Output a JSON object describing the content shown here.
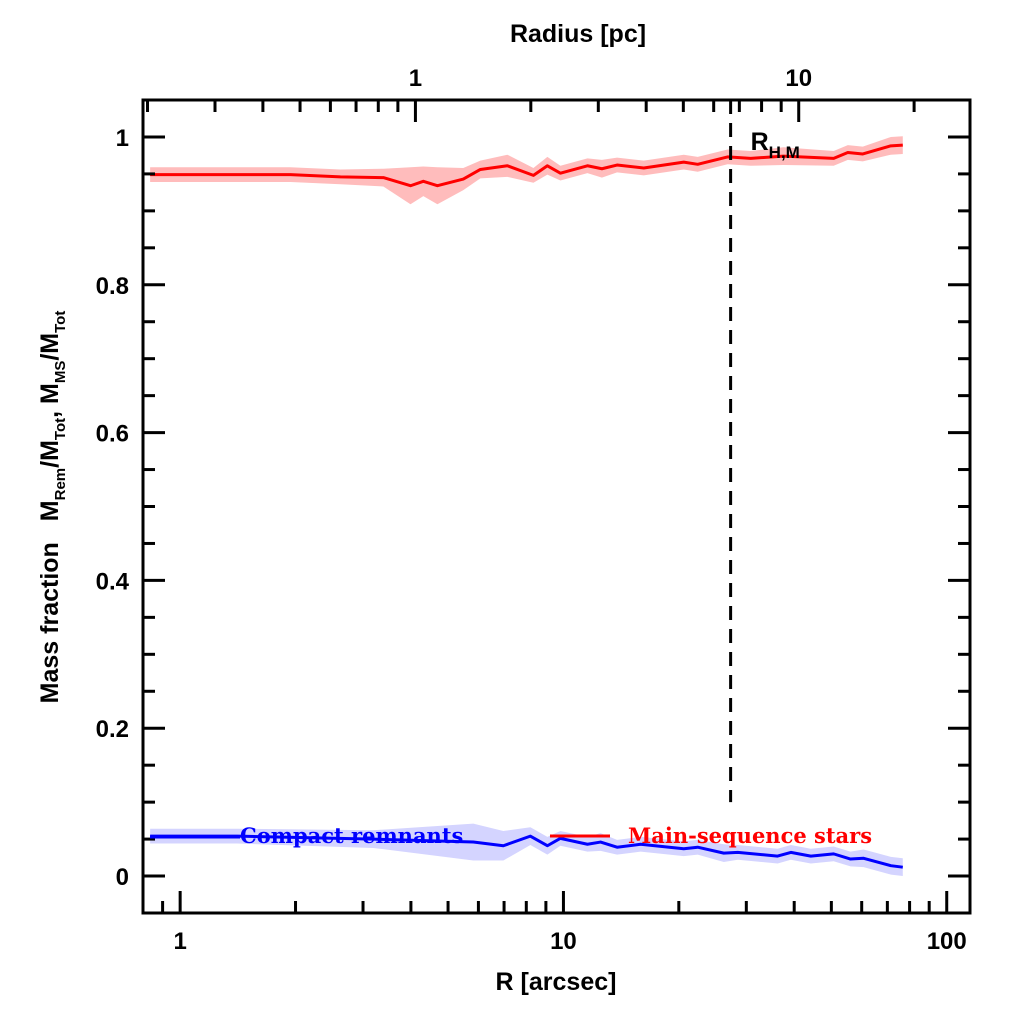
{
  "chart_data": {
    "type": "line",
    "xlabel": "R [arcsec]",
    "top_xlabel": "Radius [pc]",
    "ylabel_prefix": "Mass fraction",
    "ylabel_terms": [
      {
        "main": "M",
        "sub": "Rem"
      },
      {
        "main": "/M",
        "sub": "Tot"
      },
      {
        "main": ", M",
        "sub": "MS"
      },
      {
        "main": "/M",
        "sub": "Tot"
      }
    ],
    "x_scale": "log",
    "xlim": [
      0.8,
      115
    ],
    "ylim": [
      -0.05,
      1.05
    ],
    "x_ticks": [
      {
        "value": 1,
        "label": "1"
      },
      {
        "value": 10,
        "label": "10"
      },
      {
        "value": 100,
        "label": "100"
      }
    ],
    "top_axis": {
      "scale": "log",
      "arcsec_per_pc": 4.11,
      "ticks": [
        {
          "value": 1,
          "label": "1"
        },
        {
          "value": 10,
          "label": "10"
        }
      ]
    },
    "y_ticks": [
      {
        "value": 0,
        "label": "0"
      },
      {
        "value": 0.2,
        "label": "0.2"
      },
      {
        "value": 0.4,
        "label": "0.4"
      },
      {
        "value": 0.6,
        "label": "0.6"
      },
      {
        "value": 0.8,
        "label": "0.8"
      },
      {
        "value": 1,
        "label": "1"
      }
    ],
    "y_minor_step": 0.05,
    "grid": false,
    "vline": {
      "x": 27.3,
      "style": "dashed",
      "label_main": "R",
      "label_sub": "H,M",
      "y_range": [
        0.1,
        1.05
      ]
    },
    "legend_placement": "bottom-inline",
    "series": [
      {
        "name": "Main-sequence stars",
        "color": "#ff0000",
        "band_color": "#ffbcbc",
        "x": [
          0.835,
          1.94,
          2.62,
          3.39,
          3.99,
          4.31,
          4.69,
          5.48,
          6.07,
          7.14,
          8.35,
          9.08,
          9.82,
          11.55,
          12.6,
          13.8,
          16.2,
          20.6,
          22.4,
          26.8,
          30.8,
          37.5,
          50.7,
          55.2,
          60.4,
          71.5,
          76.8
        ],
        "y": [
          0.949,
          0.949,
          0.946,
          0.945,
          0.934,
          0.94,
          0.934,
          0.943,
          0.956,
          0.961,
          0.948,
          0.961,
          0.951,
          0.961,
          0.957,
          0.962,
          0.958,
          0.966,
          0.963,
          0.973,
          0.971,
          0.974,
          0.971,
          0.979,
          0.977,
          0.988,
          0.989
        ],
        "err": [
          0.01,
          0.01,
          0.01,
          0.012,
          0.025,
          0.02,
          0.025,
          0.015,
          0.012,
          0.015,
          0.01,
          0.012,
          0.01,
          0.01,
          0.012,
          0.01,
          0.01,
          0.01,
          0.01,
          0.01,
          0.01,
          0.012,
          0.01,
          0.01,
          0.01,
          0.012,
          0.012
        ]
      },
      {
        "name": "Compact remnants",
        "color": "#0000ff",
        "band_color": "#d4d4ff",
        "x": [
          0.835,
          1.41,
          3.19,
          5.82,
          6.97,
          8.2,
          9.08,
          9.82,
          11.55,
          12.5,
          13.8,
          15.9,
          20.6,
          22.4,
          26.2,
          28.5,
          36.2,
          39.2,
          44.2,
          50.7,
          56.1,
          60.7,
          71.5,
          76.8
        ],
        "y": [
          0.054,
          0.054,
          0.05,
          0.046,
          0.041,
          0.054,
          0.041,
          0.051,
          0.043,
          0.046,
          0.039,
          0.043,
          0.037,
          0.039,
          0.031,
          0.032,
          0.027,
          0.032,
          0.027,
          0.03,
          0.023,
          0.024,
          0.014,
          0.012
        ],
        "err": [
          0.01,
          0.01,
          0.012,
          0.025,
          0.02,
          0.012,
          0.012,
          0.01,
          0.01,
          0.012,
          0.01,
          0.01,
          0.01,
          0.01,
          0.012,
          0.01,
          0.01,
          0.01,
          0.01,
          0.01,
          0.01,
          0.012,
          0.012,
          0.012
        ]
      }
    ]
  }
}
